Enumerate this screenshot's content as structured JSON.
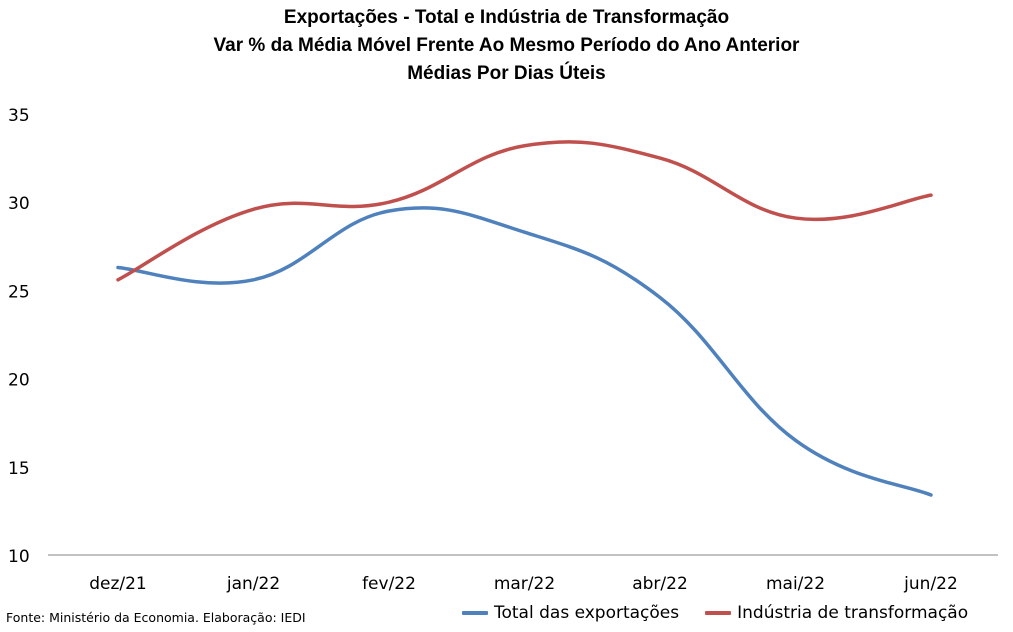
{
  "chart_data": {
    "type": "line",
    "title_lines": [
      "Exportações -  Total e Indústria de Transformação",
      "Var % da Média Móvel Frente Ao Mesmo Período do Ano Anterior",
      "Médias Por Dias Úteis"
    ],
    "categories": [
      "dez/21",
      "jan/22",
      "fev/22",
      "mar/22",
      "abr/22",
      "mai/22",
      "jun/22"
    ],
    "ylim": [
      10,
      35
    ],
    "yticks": [
      "35",
      "30",
      "25",
      "20",
      "15",
      "10"
    ],
    "ytick_values": [
      35,
      30,
      25,
      20,
      15,
      10
    ],
    "grid": false,
    "legend_position": "bottom-right",
    "series": [
      {
        "name": "Total das exportações",
        "color": "#4f81bd",
        "values": [
          26.3,
          25.6,
          29.5,
          28.3,
          24.6,
          16.5,
          13.4
        ]
      },
      {
        "name": "Indústria de transformação",
        "color": "#c0504d",
        "values": [
          25.6,
          29.6,
          30.0,
          33.2,
          32.5,
          29.1,
          30.4
        ]
      }
    ],
    "source": "Fonte: Ministério da Economia. Elaboração: IEDI"
  }
}
